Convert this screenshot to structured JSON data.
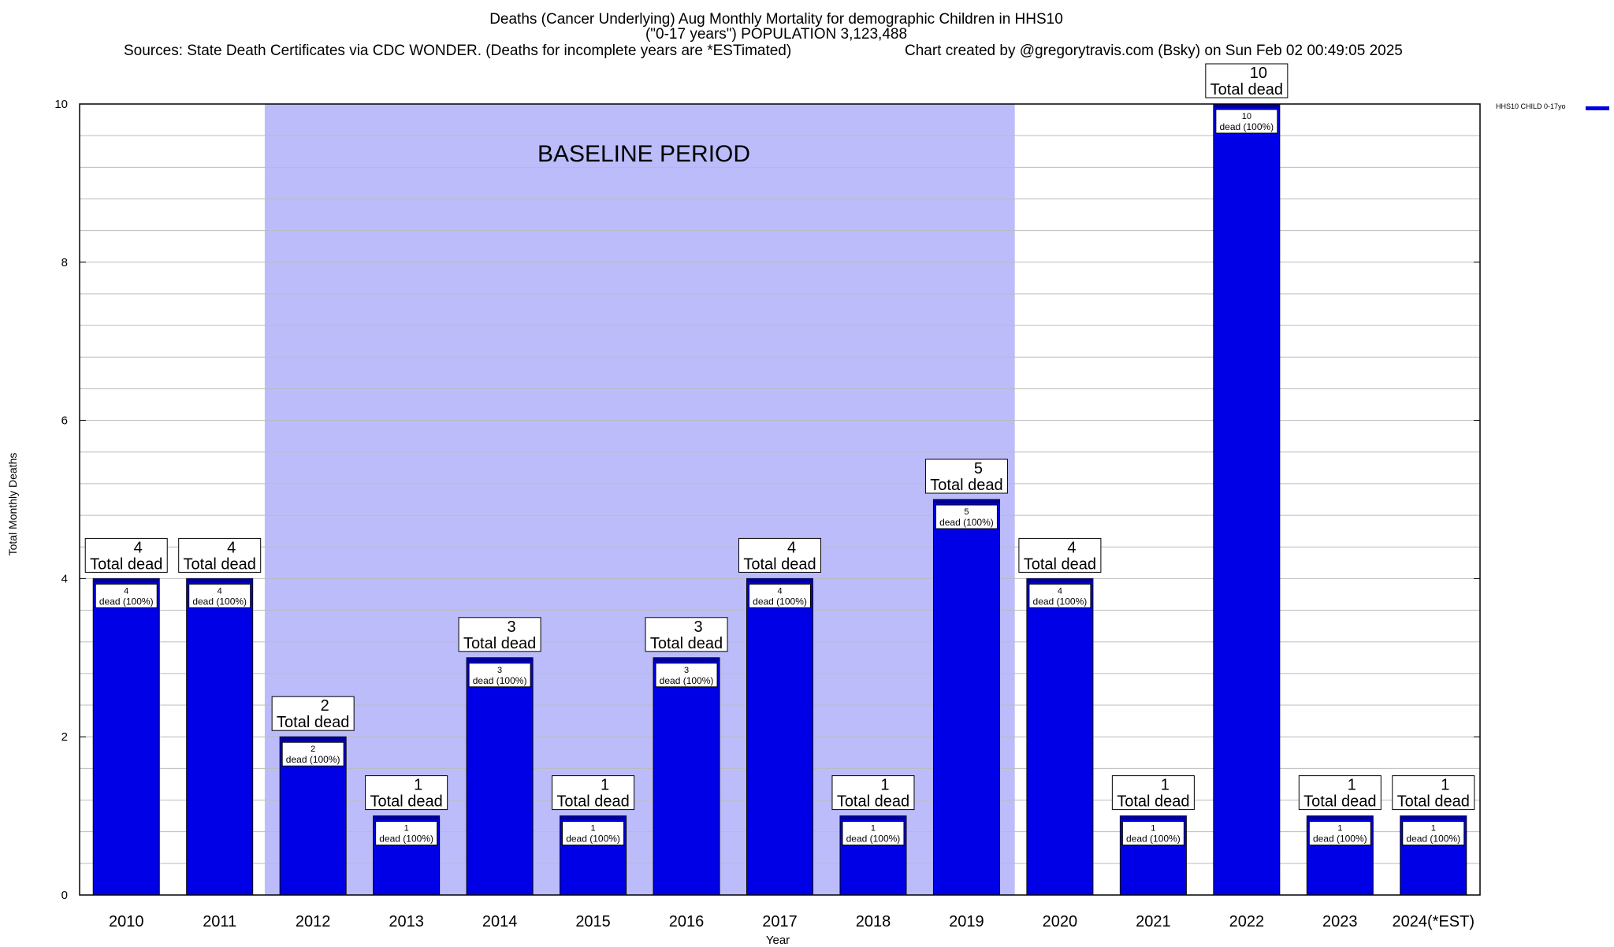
{
  "header": {
    "title_line1": "Deaths (Cancer Underlying) Aug Monthly Mortality for demographic Children in HHS10",
    "title_line2": "(\"0-17 years\") POPULATION 3,123,488",
    "sources": "Sources: State Death Certificates via CDC WONDER. (Deaths for incomplete years are *ESTimated)",
    "credit": "Chart created by @gregorytravis.com (Bsky) on Sun Feb 02 00:49:05 2025"
  },
  "chart_data": {
    "type": "bar",
    "categories": [
      "2010",
      "2011",
      "2012",
      "2013",
      "2014",
      "2015",
      "2016",
      "2017",
      "2018",
      "2019",
      "2020",
      "2021",
      "2022",
      "2023",
      "2024(*EST)"
    ],
    "series": [
      {
        "name": "HHS10 CHILD 0-17yo",
        "values": [
          4,
          4,
          2,
          1,
          3,
          1,
          3,
          4,
          1,
          5,
          4,
          1,
          10,
          1,
          1
        ]
      }
    ],
    "top_label_suffix": "Total dead",
    "inner_label_suffix": "dead (100%)",
    "baseline": {
      "label": "BASELINE PERIOD",
      "start": "2012",
      "end": "2019"
    },
    "xlabel": "Year",
    "ylabel": "Total Monthly Deaths",
    "ylim": [
      0,
      10
    ],
    "yticks": [
      0,
      2,
      4,
      6,
      8,
      10
    ],
    "grid": true,
    "legend_position": "top-right",
    "colors": {
      "bar": "#0000e6",
      "bar_top": "#000099",
      "baseline": "#bcbcfa",
      "grid": "#bbbbbb"
    }
  }
}
